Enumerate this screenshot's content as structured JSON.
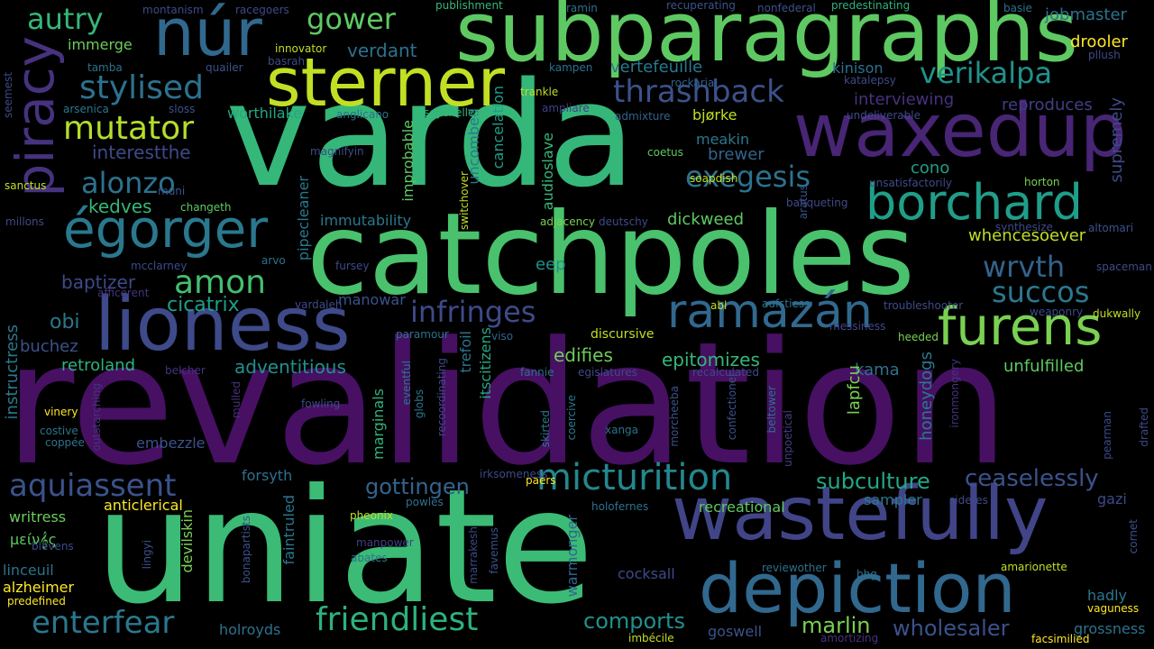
{
  "words": [
    {
      "text": "revalidation",
      "color": "#471063"
    },
    {
      "text": "uniate",
      "color": "#3bbb75"
    },
    {
      "text": "varda",
      "color": "#35b779"
    },
    {
      "text": "catchpoles",
      "color": "#4ac16d"
    },
    {
      "text": "subparagraphs",
      "color": "#5ec962"
    },
    {
      "text": "waxedup",
      "color": "#482575"
    },
    {
      "text": "lioness",
      "color": "#3e4a89"
    },
    {
      "text": "wastefully",
      "color": "#414487"
    },
    {
      "text": "depiction",
      "color": "#31688e"
    },
    {
      "text": "sterner",
      "color": "#c2df23"
    },
    {
      "text": "núr",
      "color": "#31688e"
    },
    {
      "text": "piracy",
      "color": "#46327e"
    },
    {
      "text": "furens",
      "color": "#7ad151"
    },
    {
      "text": "borchard",
      "color": "#1f9e89"
    },
    {
      "text": "égorger",
      "color": "#2a788e"
    },
    {
      "text": "ramazán",
      "color": "#31688e"
    },
    {
      "text": "micturition",
      "color": "#24878e"
    },
    {
      "text": "aquiassent",
      "color": "#3b528b"
    },
    {
      "text": "enterfear",
      "color": "#2a788e"
    },
    {
      "text": "friendliest",
      "color": "#2db27d"
    },
    {
      "text": "stylised",
      "color": "#2c728e"
    },
    {
      "text": "mutator",
      "color": "#b5de2b"
    },
    {
      "text": "verikalpa",
      "color": "#21918c"
    },
    {
      "text": "thrashback",
      "color": "#3b528b"
    },
    {
      "text": "exegesis",
      "color": "#2c728e"
    },
    {
      "text": "alonzo",
      "color": "#2c728e"
    },
    {
      "text": "autry",
      "color": "#35b779"
    },
    {
      "text": "gower",
      "color": "#5ec962"
    },
    {
      "text": "succos",
      "color": "#2a788e"
    },
    {
      "text": "wrvth",
      "color": "#33638d"
    },
    {
      "text": "infringes",
      "color": "#3e4a89"
    },
    {
      "text": "amon",
      "color": "#44bf70"
    },
    {
      "text": "wholesaler",
      "color": "#3b528b"
    },
    {
      "text": "comports",
      "color": "#21918c"
    },
    {
      "text": "gottingen",
      "color": "#33638d"
    },
    {
      "text": "subculture",
      "color": "#22a884"
    },
    {
      "text": "ceaselessly",
      "color": "#3b528b"
    },
    {
      "text": "marlin",
      "color": "#7ad151"
    },
    {
      "text": "cicatrix",
      "color": "#1f9e89"
    },
    {
      "text": "adventitious",
      "color": "#21918c"
    },
    {
      "text": "baptizer",
      "color": "#3e4a89"
    },
    {
      "text": "kedves",
      "color": "#35b779"
    },
    {
      "text": "obi",
      "color": "#2a788e"
    },
    {
      "text": "buchez",
      "color": "#3b528b"
    },
    {
      "text": "retroland",
      "color": "#2db27d"
    },
    {
      "text": "instructress",
      "color": "#2a788e"
    },
    {
      "text": "interestthe",
      "color": "#3e4a89"
    },
    {
      "text": "worthilake",
      "color": "#22a884"
    },
    {
      "text": "immerge",
      "color": "#6ccd5a"
    },
    {
      "text": "verdant",
      "color": "#2c728e"
    },
    {
      "text": "vertefeuille",
      "color": "#2a788e"
    },
    {
      "text": "kinison",
      "color": "#2c728e"
    },
    {
      "text": "interviewing",
      "color": "#46327e"
    },
    {
      "text": "reproduces",
      "color": "#433e85"
    },
    {
      "text": "jobmaster",
      "color": "#2c728e"
    },
    {
      "text": "drooler",
      "color": "#fde725"
    },
    {
      "text": "edifies",
      "color": "#6ccd5a"
    },
    {
      "text": "epitomizes",
      "color": "#35b779"
    },
    {
      "text": "unfulfilled",
      "color": "#5ec962"
    },
    {
      "text": "kama",
      "color": "#2c728e"
    },
    {
      "text": "honeydogs",
      "color": "#2a788e"
    },
    {
      "text": "lapfcu",
      "color": "#7ad151"
    },
    {
      "text": "whencesoever",
      "color": "#c2df23"
    },
    {
      "text": "supremely",
      "color": "#3e4a89"
    },
    {
      "text": "dickweed",
      "color": "#5ec962"
    },
    {
      "text": "brewer",
      "color": "#33638d"
    },
    {
      "text": "cono",
      "color": "#1f9e89"
    },
    {
      "text": "meakin",
      "color": "#2a788e"
    },
    {
      "text": "bjørke",
      "color": "#c2df23"
    },
    {
      "text": "eep",
      "color": "#21918c"
    },
    {
      "text": "immutability",
      "color": "#2a788e"
    },
    {
      "text": "improbable",
      "color": "#5ec962"
    },
    {
      "text": "uncombed",
      "color": "#2a788e"
    },
    {
      "text": "cancelation",
      "color": "#1f9e89"
    },
    {
      "text": "audioslave",
      "color": "#35b779"
    },
    {
      "text": "manowar",
      "color": "#3b528b"
    },
    {
      "text": "discursive",
      "color": "#c2df23"
    },
    {
      "text": "trefoil",
      "color": "#2a788e"
    },
    {
      "text": "itscitizens",
      "color": "#22a884"
    },
    {
      "text": "pipecleaner",
      "color": "#2a788e"
    },
    {
      "text": "forsyth",
      "color": "#2c728e"
    },
    {
      "text": "sampler",
      "color": "#2a788e"
    },
    {
      "text": "gazi",
      "color": "#3e4a89"
    },
    {
      "text": "writress",
      "color": "#6ccd5a"
    },
    {
      "text": "anticlerical",
      "color": "#fde725"
    },
    {
      "text": "μείν𝄞ς",
      "color": "#5ec962"
    },
    {
      "text": "linceuil",
      "color": "#2c728e"
    },
    {
      "text": "alzheimer",
      "color": "#fde725"
    },
    {
      "text": "devilskin",
      "color": "#7ad151"
    },
    {
      "text": "faintruled",
      "color": "#2a788e"
    },
    {
      "text": "holroyds",
      "color": "#2c728e"
    },
    {
      "text": "recreational",
      "color": "#5ec962"
    },
    {
      "text": "cocksall",
      "color": "#3e4a89"
    },
    {
      "text": "goswell",
      "color": "#3b528b"
    },
    {
      "text": "hadly",
      "color": "#2a788e"
    },
    {
      "text": "grossness",
      "color": "#2c728e"
    },
    {
      "text": "marginals",
      "color": "#2db27d"
    },
    {
      "text": "warmonger",
      "color": "#31688e"
    },
    {
      "text": "embezzle",
      "color": "#3b528b"
    },
    {
      "text": "montanism",
      "color": "#3e4a89"
    },
    {
      "text": "racegoers",
      "color": "#3e4a89"
    },
    {
      "text": "publishment",
      "color": "#35b779"
    },
    {
      "text": "ramin",
      "color": "#2c728e"
    },
    {
      "text": "recuperating",
      "color": "#3b528b"
    },
    {
      "text": "nonfederal",
      "color": "#3b528b"
    },
    {
      "text": "predestinating",
      "color": "#2db27d"
    },
    {
      "text": "basie",
      "color": "#2c728e"
    },
    {
      "text": "innovator",
      "color": "#c2df23"
    },
    {
      "text": "tamba",
      "color": "#2c728e"
    },
    {
      "text": "quailer",
      "color": "#3b528b"
    },
    {
      "text": "basrah",
      "color": "#3e4a89"
    },
    {
      "text": "kampen",
      "color": "#2c728e"
    },
    {
      "text": "pllush",
      "color": "#3e4a89"
    },
    {
      "text": "rockaria",
      "color": "#33638d"
    },
    {
      "text": "katalepsy",
      "color": "#3e4a89"
    },
    {
      "text": "trankle",
      "color": "#c2df23"
    },
    {
      "text": "seemest",
      "color": "#3e4a89"
    },
    {
      "text": "arsenica",
      "color": "#2a788e"
    },
    {
      "text": "sloss",
      "color": "#3b528b"
    },
    {
      "text": "anglicano",
      "color": "#2c728e"
    },
    {
      "text": "seychelles",
      "color": "#35b779"
    },
    {
      "text": "ampliare",
      "color": "#433e85"
    },
    {
      "text": "admixture",
      "color": "#33638d"
    },
    {
      "text": "undeliverable",
      "color": "#3e4a89"
    },
    {
      "text": "magnifyin",
      "color": "#3e4a89"
    },
    {
      "text": "coetus",
      "color": "#5ec962"
    },
    {
      "text": "sanctus",
      "color": "#c2df23"
    },
    {
      "text": "switchover",
      "color": "#c2df23"
    },
    {
      "text": "soapdish",
      "color": "#c2df23"
    },
    {
      "text": "unsatisfactorily",
      "color": "#3e4a89"
    },
    {
      "text": "horton",
      "color": "#7ad151"
    },
    {
      "text": "muni",
      "color": "#3b528b"
    },
    {
      "text": "changeth",
      "color": "#5ec962"
    },
    {
      "text": "adjacency",
      "color": "#7ad151"
    },
    {
      "text": "deutschy",
      "color": "#3e4a89"
    },
    {
      "text": "aratus",
      "color": "#3b528b"
    },
    {
      "text": "banqueting",
      "color": "#3e4a89"
    },
    {
      "text": "millons",
      "color": "#3e4a89"
    },
    {
      "text": "synthesize",
      "color": "#3e4a89"
    },
    {
      "text": "altomari",
      "color": "#3b528b"
    },
    {
      "text": "mcclarney",
      "color": "#3e4a89"
    },
    {
      "text": "arvo",
      "color": "#2c728e"
    },
    {
      "text": "fursey",
      "color": "#3e4a89"
    },
    {
      "text": "spaceman",
      "color": "#3e4a89"
    },
    {
      "text": "afficerent",
      "color": "#46327e"
    },
    {
      "text": "vardaleh",
      "color": "#3e4a89"
    },
    {
      "text": "abl",
      "color": "#c2df23"
    },
    {
      "text": "aufstiess",
      "color": "#2c728e"
    },
    {
      "text": "troubleshooter",
      "color": "#3e4a89"
    },
    {
      "text": "weaponry",
      "color": "#3e4a89"
    },
    {
      "text": "dukwally",
      "color": "#c2df23"
    },
    {
      "text": "paramour",
      "color": "#2c728e"
    },
    {
      "text": "viso",
      "color": "#33638d"
    },
    {
      "text": "messiness",
      "color": "#3e4a89"
    },
    {
      "text": "heeded",
      "color": "#7ad151"
    },
    {
      "text": "belcher",
      "color": "#46327e"
    },
    {
      "text": "fannie",
      "color": "#2c728e"
    },
    {
      "text": "egislatures",
      "color": "#3e4a89"
    },
    {
      "text": "recalculated",
      "color": "#3e4a89"
    },
    {
      "text": "ironmongery",
      "color": "#46327e"
    },
    {
      "text": "recoordinating",
      "color": "#3e4a89"
    },
    {
      "text": "eventful",
      "color": "#2a788e"
    },
    {
      "text": "globs",
      "color": "#2a788e"
    },
    {
      "text": "mulled",
      "color": "#46327e"
    },
    {
      "text": "fowling",
      "color": "#3e4a89"
    },
    {
      "text": "vinery",
      "color": "#fde725"
    },
    {
      "text": "costive",
      "color": "#2c728e"
    },
    {
      "text": "coppée",
      "color": "#2c728e"
    },
    {
      "text": "outstarching",
      "color": "#46327e"
    },
    {
      "text": "skirted",
      "color": "#2a788e"
    },
    {
      "text": "coercive",
      "color": "#2a788e"
    },
    {
      "text": "xanga",
      "color": "#2c728e"
    },
    {
      "text": "morcheeba",
      "color": "#3b528b"
    },
    {
      "text": "confectioner",
      "color": "#3b528b"
    },
    {
      "text": "beltower",
      "color": "#2c728e"
    },
    {
      "text": "unpoetical",
      "color": "#433e85"
    },
    {
      "text": "pearman",
      "color": "#3e4a89"
    },
    {
      "text": "drafted",
      "color": "#3e4a89"
    },
    {
      "text": "irksomeness",
      "color": "#3e4a89"
    },
    {
      "text": "paers",
      "color": "#fde725"
    },
    {
      "text": "powles",
      "color": "#2c728e"
    },
    {
      "text": "holofernes",
      "color": "#2c728e"
    },
    {
      "text": "sidetes",
      "color": "#3e4a89"
    },
    {
      "text": "pheonix",
      "color": "#c2df23"
    },
    {
      "text": "manpower",
      "color": "#433e85"
    },
    {
      "text": "blevens",
      "color": "#3e4a89"
    },
    {
      "text": "lingyi",
      "color": "#3b528b"
    },
    {
      "text": "abates",
      "color": "#2c728e"
    },
    {
      "text": "bonapartists",
      "color": "#3b528b"
    },
    {
      "text": "marrakesh",
      "color": "#3e4a89"
    },
    {
      "text": "favemus",
      "color": "#3b528b"
    },
    {
      "text": "reviewother",
      "color": "#2c728e"
    },
    {
      "text": "bhg",
      "color": "#2c728e"
    },
    {
      "text": "amarionette",
      "color": "#c2df23"
    },
    {
      "text": "cornet",
      "color": "#3b528b"
    },
    {
      "text": "vaguness",
      "color": "#fde725"
    },
    {
      "text": "predefined",
      "color": "#fde725"
    },
    {
      "text": "imbécile",
      "color": "#c2df23"
    },
    {
      "text": "amortizing",
      "color": "#46327e"
    },
    {
      "text": "facsimilied",
      "color": "#fde725"
    }
  ]
}
